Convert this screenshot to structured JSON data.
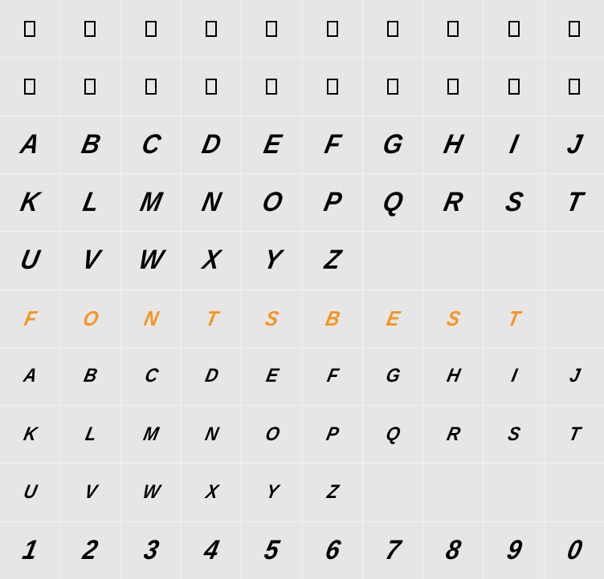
{
  "grid": {
    "cols": 10,
    "rows": 10,
    "background_color": "#e6e6e6",
    "gap_color": "#f2f2f2",
    "colors": {
      "black": "#000000",
      "orange": "#f7941d"
    },
    "font_sizes": {
      "large": 34,
      "med": 26,
      "small": 24
    },
    "rows_data": [
      {
        "type": "box",
        "cells": [
          "",
          "",
          "",
          "",
          "",
          "",
          "",
          "",
          "",
          ""
        ]
      },
      {
        "type": "box",
        "cells": [
          "",
          "",
          "",
          "",
          "",
          "",
          "",
          "",
          "",
          ""
        ]
      },
      {
        "type": "glyph",
        "size": "large",
        "color": "black",
        "cells": [
          "A",
          "B",
          "C",
          "D",
          "E",
          "F",
          "G",
          "H",
          "I",
          "J"
        ]
      },
      {
        "type": "glyph",
        "size": "large",
        "color": "black",
        "cells": [
          "K",
          "L",
          "M",
          "N",
          "O",
          "P",
          "Q",
          "R",
          "S",
          "T"
        ]
      },
      {
        "type": "glyph",
        "size": "large",
        "color": "black",
        "cells": [
          "U",
          "V",
          "W",
          "X",
          "Y",
          "Z",
          "",
          "",
          "",
          ""
        ]
      },
      {
        "type": "glyph",
        "size": "med",
        "color": "orange",
        "cells": [
          "F",
          "O",
          "N",
          "T",
          "S",
          "B",
          "E",
          "S",
          "T",
          ""
        ]
      },
      {
        "type": "glyph",
        "size": "small",
        "color": "black",
        "cells": [
          "A",
          "B",
          "C",
          "D",
          "E",
          "F",
          "G",
          "H",
          "I",
          "J"
        ]
      },
      {
        "type": "glyph",
        "size": "small",
        "color": "black",
        "cells": [
          "K",
          "L",
          "M",
          "N",
          "O",
          "P",
          "Q",
          "R",
          "S",
          "T"
        ]
      },
      {
        "type": "glyph",
        "size": "small",
        "color": "black",
        "cells": [
          "U",
          "V",
          "W",
          "X",
          "Y",
          "Z",
          "",
          "",
          "",
          ""
        ]
      },
      {
        "type": "glyph",
        "size": "large",
        "color": "black",
        "cells": [
          "1",
          "2",
          "3",
          "4",
          "5",
          "6",
          "7",
          "8",
          "9",
          "0"
        ]
      }
    ]
  }
}
